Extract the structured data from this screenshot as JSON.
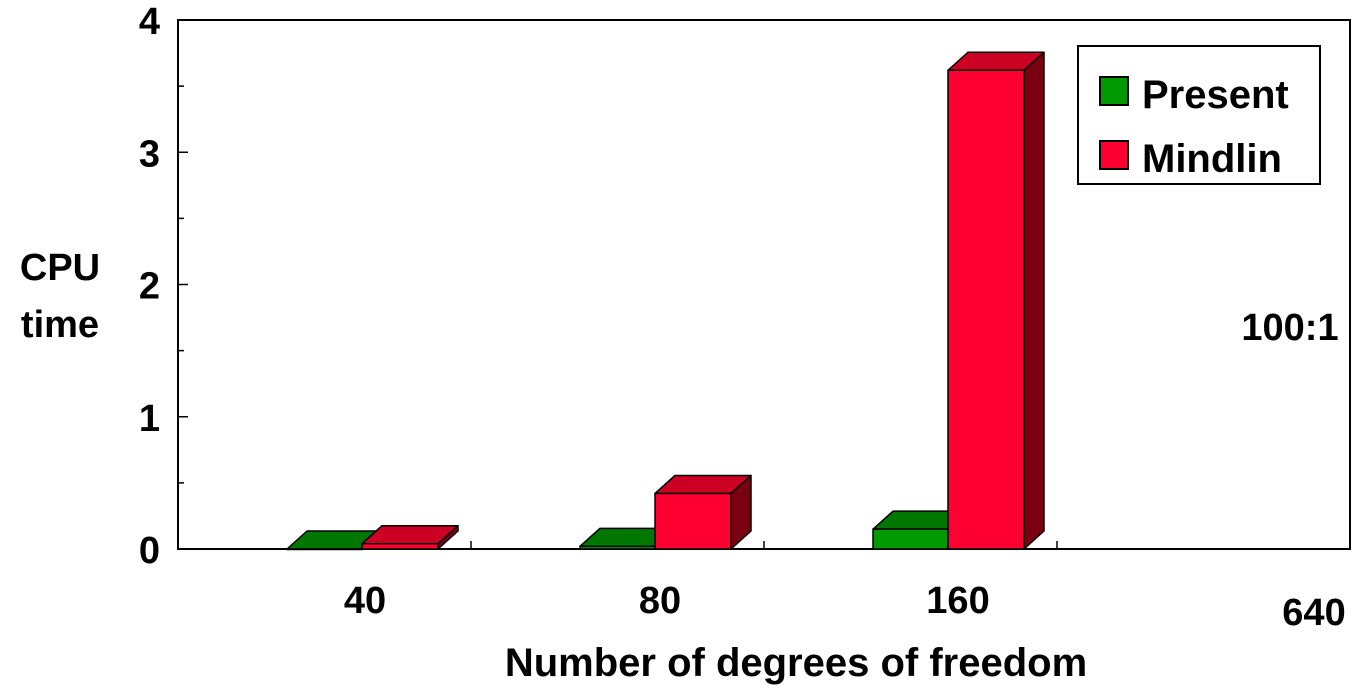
{
  "chart_data": {
    "type": "bar",
    "categories": [
      "40",
      "80",
      "160",
      "640"
    ],
    "series": [
      {
        "name": "Present",
        "values": [
          0.0,
          0.02,
          0.15,
          null
        ]
      },
      {
        "name": "Mindlin",
        "values": [
          0.04,
          0.42,
          3.62,
          null
        ]
      }
    ],
    "xlabel": "Number of degrees of freedom",
    "ylabel_lines": [
      "CPU",
      "time"
    ],
    "ylim": [
      0,
      4
    ],
    "yticks": [
      "0",
      "1",
      "2",
      "3",
      "4"
    ],
    "annotation": "100:1",
    "legend_position": "top-right",
    "grid": false,
    "colors": {
      "Present": {
        "front": "#009900",
        "top": "#007700",
        "side": "#005500"
      },
      "Mindlin": {
        "front": "#ff0033",
        "top": "#cc0022",
        "side": "#7a0011"
      }
    }
  }
}
